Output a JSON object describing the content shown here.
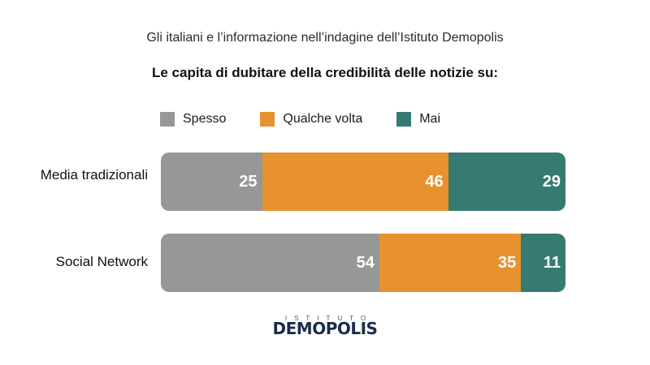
{
  "subtitle": "Gli italiani e l’informazione nell’indagine dell’Istituto Demopolis",
  "colors": {
    "spesso": "#979797",
    "qualche_volta": "#e8922f",
    "mai": "#357a73"
  },
  "logo": {
    "top_text": "ISTITUTO",
    "main_text": "DEMOPOLIS"
  },
  "chart_data": {
    "type": "bar",
    "orientation": "horizontal",
    "stacked": true,
    "title": "Le capita di dubitare della credibilità delle notizie su:",
    "categories": [
      "Media tradizionali",
      "Social Network"
    ],
    "series": [
      {
        "name": "Spesso",
        "values": [
          25,
          54
        ],
        "color": "#979797"
      },
      {
        "name": "Qualche volta",
        "values": [
          46,
          35
        ],
        "color": "#e8922f"
      },
      {
        "name": "Mai",
        "values": [
          29,
          11
        ],
        "color": "#357a73"
      }
    ],
    "xlim": [
      0,
      100
    ],
    "legend": "top-left",
    "grid": false
  }
}
